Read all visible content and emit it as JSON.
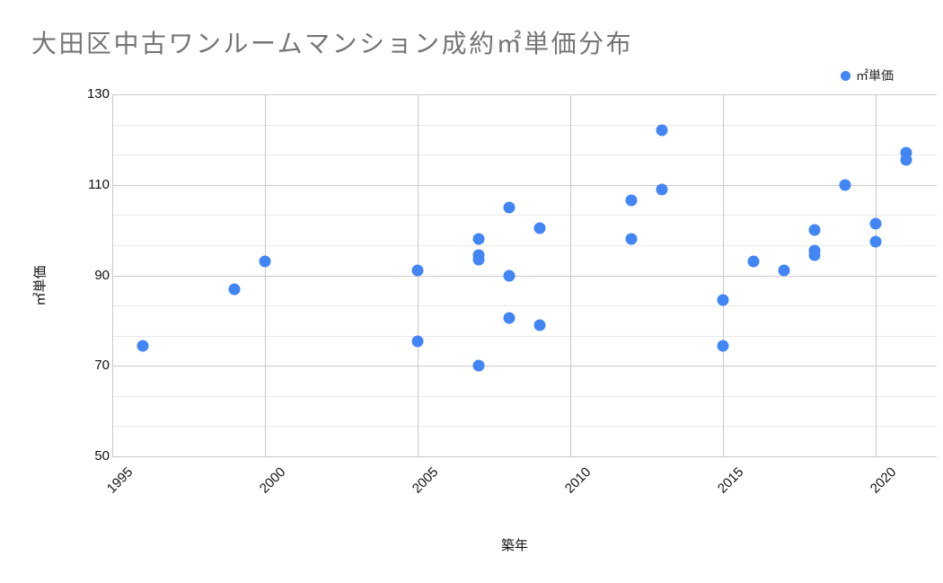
{
  "header": {
    "title": "大田区中古ワンルームマンション成約㎡単価分布"
  },
  "legend": {
    "label": "㎡単価",
    "marker_color": "#4285f4",
    "position": "top-right"
  },
  "colors": {
    "point": "#4285f4",
    "title_text": "#757575",
    "axis_text": "#111111",
    "gridline_major": "#c9c9c9",
    "gridline_minor": "#e9e9e9",
    "background": "#ffffff"
  },
  "chart_data": {
    "type": "scatter",
    "title": "大田区中古ワンルームマンション成約㎡単価分布",
    "xlabel": "築年",
    "ylabel": "㎡単価",
    "xlim": [
      1995,
      2022
    ],
    "ylim": [
      50,
      130
    ],
    "x_ticks": [
      1995,
      2000,
      2005,
      2010,
      2015,
      2020
    ],
    "y_ticks": [
      130,
      110,
      90,
      70,
      50
    ],
    "grid": {
      "horizontal_divisions": 12,
      "minor_per_major": 3,
      "vertical_lines_every_years": 5
    },
    "series": [
      {
        "name": "㎡単価",
        "color": "#4285f4",
        "points": [
          [
            1996,
            74.5
          ],
          [
            1999,
            87
          ],
          [
            2000,
            93
          ],
          [
            2005,
            91
          ],
          [
            2005,
            75.5
          ],
          [
            2007,
            98
          ],
          [
            2007,
            94.5
          ],
          [
            2007,
            93.5
          ],
          [
            2007,
            70
          ],
          [
            2008,
            105
          ],
          [
            2008,
            90
          ],
          [
            2008,
            80.5
          ],
          [
            2009,
            100.5
          ],
          [
            2009,
            79
          ],
          [
            2012,
            106.5
          ],
          [
            2012,
            98
          ],
          [
            2013,
            122
          ],
          [
            2013,
            109
          ],
          [
            2015,
            84.5
          ],
          [
            2015,
            74.5
          ],
          [
            2016,
            93
          ],
          [
            2017,
            91
          ],
          [
            2018,
            100
          ],
          [
            2018,
            95.5
          ],
          [
            2018,
            94.5
          ],
          [
            2019,
            110
          ],
          [
            2020,
            101.5
          ],
          [
            2020,
            97.5
          ],
          [
            2021,
            117
          ],
          [
            2021,
            115.5
          ]
        ]
      }
    ]
  }
}
